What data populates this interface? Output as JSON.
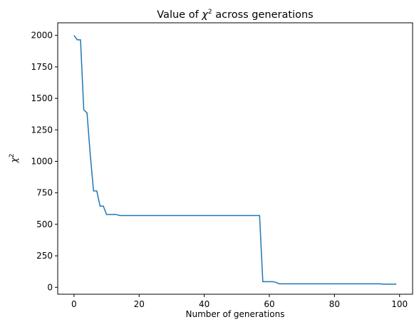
{
  "chart_data": {
    "type": "line",
    "title": {
      "prefix": "Value of ",
      "symbol": "χ",
      "sup": "2",
      "suffix": " across generations"
    },
    "xlabel": "Number of generations",
    "ylabel": {
      "symbol": "χ",
      "sup": "2"
    },
    "xlim": [
      -5,
      104
    ],
    "ylim": [
      -55,
      2100
    ],
    "xticks": [
      0,
      20,
      40,
      60,
      80,
      100
    ],
    "yticks": [
      0,
      250,
      500,
      750,
      1000,
      1250,
      1500,
      1750,
      2000
    ],
    "grid": false,
    "line_color": "#1f77b4",
    "series": [
      {
        "x": [
          0,
          1,
          2,
          3,
          4,
          5,
          6,
          7,
          8,
          9,
          10,
          11,
          12,
          13,
          14,
          15,
          16,
          17,
          18,
          19,
          20,
          21,
          22,
          23,
          24,
          25,
          26,
          27,
          28,
          29,
          30,
          31,
          32,
          33,
          34,
          35,
          36,
          37,
          38,
          39,
          40,
          41,
          42,
          43,
          44,
          45,
          46,
          47,
          48,
          49,
          50,
          51,
          52,
          53,
          54,
          55,
          56,
          57,
          58,
          59,
          60,
          61,
          62,
          63,
          64,
          65,
          66,
          67,
          68,
          69,
          70,
          71,
          72,
          73,
          74,
          75,
          76,
          77,
          78,
          79,
          80,
          81,
          82,
          83,
          84,
          85,
          86,
          87,
          88,
          89,
          90,
          91,
          92,
          93,
          94,
          95,
          96,
          97,
          98,
          99
        ],
        "y": [
          2000,
          1965,
          1965,
          1410,
          1385,
          1050,
          765,
          765,
          645,
          645,
          578,
          578,
          578,
          578,
          570,
          570,
          570,
          570,
          570,
          570,
          570,
          570,
          570,
          570,
          570,
          570,
          570,
          570,
          570,
          570,
          570,
          570,
          570,
          570,
          570,
          570,
          570,
          570,
          570,
          570,
          570,
          570,
          570,
          570,
          570,
          570,
          570,
          570,
          570,
          570,
          570,
          570,
          570,
          570,
          570,
          570,
          570,
          570,
          45,
          45,
          45,
          45,
          40,
          28,
          28,
          28,
          28,
          28,
          28,
          28,
          28,
          28,
          28,
          28,
          28,
          28,
          28,
          28,
          28,
          28,
          28,
          28,
          28,
          28,
          28,
          28,
          28,
          28,
          28,
          28,
          28,
          28,
          28,
          28,
          28,
          25,
          25,
          25,
          25,
          25
        ]
      }
    ]
  }
}
